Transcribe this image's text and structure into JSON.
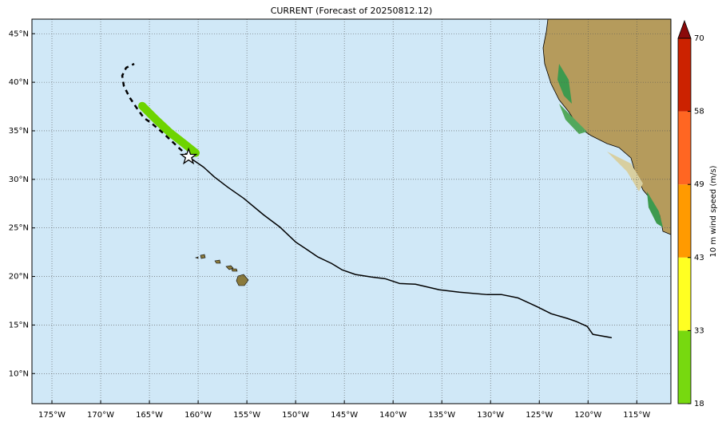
{
  "map": {
    "title": "CURRENT (Forecast of 20250812.12)",
    "lonlim": [
      -177.05,
      -111.5
    ],
    "latlim": [
      6.9,
      46.5
    ],
    "lonticks": [
      {
        "value": -175,
        "label": "175°W"
      },
      {
        "value": -170,
        "label": "170°W"
      },
      {
        "value": -165,
        "label": "165°W"
      },
      {
        "value": -160,
        "label": "160°W"
      },
      {
        "value": -155,
        "label": "155°W"
      },
      {
        "value": -150,
        "label": "150°W"
      },
      {
        "value": -145,
        "label": "145°W"
      },
      {
        "value": -140,
        "label": "140°W"
      },
      {
        "value": -135,
        "label": "135°W"
      },
      {
        "value": -130,
        "label": "130°W"
      },
      {
        "value": -125,
        "label": "125°W"
      },
      {
        "value": -120,
        "label": "120°W"
      },
      {
        "value": -115,
        "label": "115°W"
      }
    ],
    "latticks": [
      {
        "value": 10,
        "label": "10°N"
      },
      {
        "value": 15,
        "label": "15°N"
      },
      {
        "value": 20,
        "label": "20°N"
      },
      {
        "value": 25,
        "label": "25°N"
      },
      {
        "value": 30,
        "label": "30°N"
      },
      {
        "value": 35,
        "label": "35°N"
      },
      {
        "value": 40,
        "label": "40°N"
      },
      {
        "value": 45,
        "label": "45°N"
      }
    ],
    "grid": true,
    "track": {
      "color": "#000000",
      "lon": [
        -160.98,
        -159.43,
        -158.36,
        -156.97,
        -155.33,
        -153.28,
        -151.64,
        -150.0,
        -148.77,
        -147.7,
        -146.31,
        -145.25,
        -143.85,
        -142.21,
        -140.82,
        -139.34,
        -137.71,
        -135.25,
        -133.2,
        -130.33,
        -128.85,
        -127.21,
        -125.25,
        -123.77,
        -122.13,
        -121.15,
        -120.08,
        -119.51,
        -117.62
      ],
      "lat": [
        32.32,
        31.25,
        30.27,
        29.2,
        28.05,
        26.34,
        25.11,
        23.55,
        22.73,
        22.0,
        21.34,
        20.69,
        20.2,
        19.94,
        19.77,
        19.28,
        19.2,
        18.63,
        18.38,
        18.13,
        18.13,
        17.8,
        16.9,
        16.16,
        15.68,
        15.34,
        14.85,
        14.04,
        13.7
      ]
    },
    "forecast": {
      "color": "#000000",
      "lon": [
        -160.98,
        -162.3,
        -163.52,
        -164.75,
        -165.57,
        -166.23,
        -167.05,
        -167.62,
        -167.79,
        -167.38,
        -166.56
      ],
      "lat": [
        32.32,
        33.55,
        34.7,
        35.76,
        36.34,
        37.24,
        38.47,
        39.61,
        40.68,
        41.5,
        41.9
      ]
    },
    "swath": {
      "color": "#6ed400",
      "lon": [
        -165.74,
        -164.34,
        -162.95,
        -161.48,
        -160.25
      ],
      "lat": [
        37.57,
        36.17,
        34.86,
        33.71,
        32.73
      ]
    },
    "colorbar": {
      "label": "10 m wind speed (m/s)",
      "levels": [
        18,
        33,
        43,
        49,
        58,
        70
      ],
      "colors": [
        "#77d90f",
        "#ffff22",
        "#ff9a00",
        "#ff6622",
        "#cc2200"
      ],
      "extend_color": "#8b0a0a"
    }
  }
}
